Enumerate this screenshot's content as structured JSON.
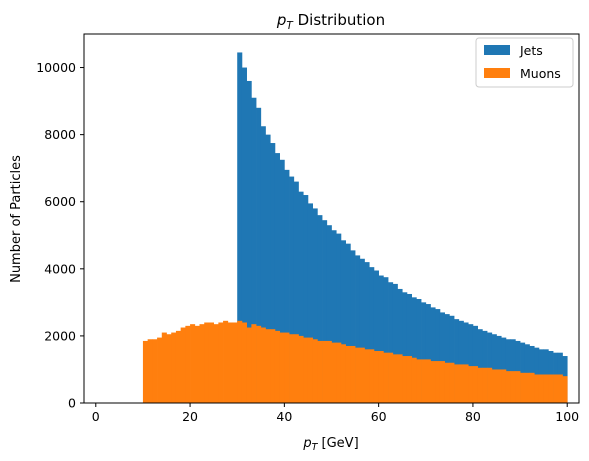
{
  "chart_data": {
    "type": "histogram",
    "title": "p_T Distribution",
    "title_parts": {
      "main": "p",
      "sub": "T",
      "rest": " Distribution"
    },
    "xlabel": "p_T [GeV]",
    "xlabel_parts": {
      "main": "p",
      "sub": "T",
      "rest": " [GeV]"
    },
    "ylabel": "Number of Particles",
    "xlim": [
      -2.5,
      102.5
    ],
    "ylim": [
      0,
      11000
    ],
    "x_ticks": [
      0,
      20,
      40,
      60,
      80,
      100
    ],
    "y_ticks": [
      0,
      2000,
      4000,
      6000,
      8000,
      10000
    ],
    "grid": false,
    "legend_position": "top-right",
    "stacked": false,
    "bin_edges_start": 0,
    "bin_width": 1,
    "series": [
      {
        "name": "Jets",
        "color": "#1f77b4",
        "values": [
          0,
          0,
          0,
          0,
          0,
          0,
          0,
          0,
          0,
          0,
          0,
          0,
          0,
          0,
          0,
          0,
          0,
          0,
          0,
          0,
          0,
          0,
          0,
          0,
          0,
          0,
          0,
          0,
          0,
          0,
          10450,
          10000,
          9600,
          9100,
          8800,
          8250,
          8000,
          7750,
          7450,
          7250,
          6950,
          6750,
          6600,
          6300,
          6200,
          5950,
          5800,
          5600,
          5450,
          5300,
          5150,
          5050,
          4850,
          4750,
          4550,
          4400,
          4300,
          4200,
          4050,
          3950,
          3800,
          3750,
          3600,
          3550,
          3400,
          3300,
          3250,
          3150,
          3100,
          3000,
          2950,
          2850,
          2800,
          2700,
          2650,
          2600,
          2500,
          2450,
          2400,
          2350,
          2300,
          2200,
          2150,
          2100,
          2050,
          2000,
          1950,
          1900,
          1900,
          1850,
          1800,
          1750,
          1700,
          1650,
          1600,
          1600,
          1550,
          1500,
          1500,
          1400
        ]
      },
      {
        "name": "Muons",
        "color": "#ff7f0e",
        "values": [
          0,
          0,
          0,
          0,
          0,
          0,
          0,
          0,
          0,
          0,
          1850,
          1900,
          1900,
          1950,
          2100,
          2050,
          2100,
          2150,
          2250,
          2300,
          2350,
          2300,
          2350,
          2400,
          2400,
          2350,
          2400,
          2450,
          2400,
          2400,
          2450,
          2400,
          2250,
          2350,
          2300,
          2250,
          2200,
          2200,
          2150,
          2100,
          2100,
          2050,
          2050,
          2000,
          1950,
          1950,
          1900,
          1850,
          1850,
          1850,
          1800,
          1800,
          1750,
          1700,
          1700,
          1650,
          1650,
          1600,
          1600,
          1550,
          1550,
          1500,
          1500,
          1450,
          1450,
          1400,
          1400,
          1350,
          1300,
          1300,
          1300,
          1250,
          1250,
          1250,
          1200,
          1200,
          1150,
          1150,
          1150,
          1100,
          1100,
          1050,
          1050,
          1050,
          1000,
          1000,
          1000,
          950,
          950,
          950,
          900,
          900,
          900,
          850,
          850,
          850,
          850,
          850,
          850,
          800
        ]
      }
    ]
  }
}
